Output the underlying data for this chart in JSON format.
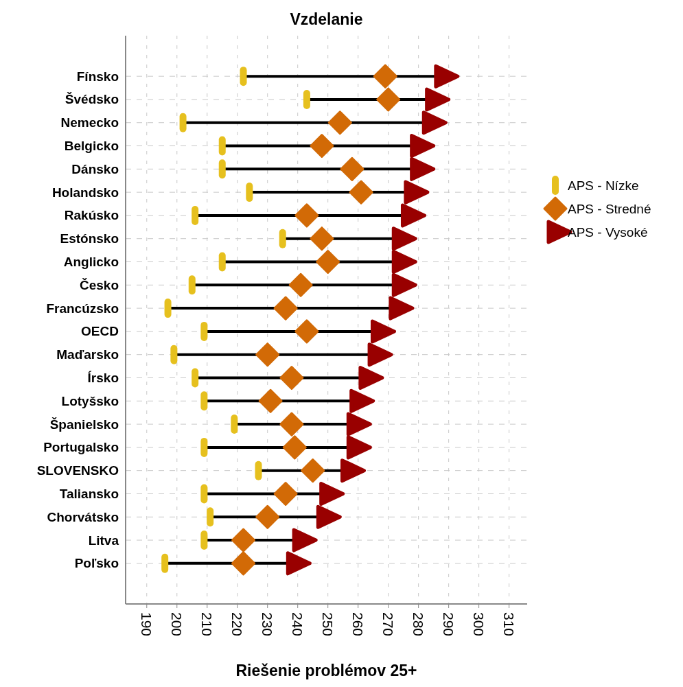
{
  "chart_data": {
    "type": "scatter",
    "title": "Vzdelanie",
    "xlabel": "Riešenie problémov 25+",
    "orientation": "horizontal",
    "categories": [
      "Fínsko",
      "Švédsko",
      "Nemecko",
      "Belgicko",
      "Dánsko",
      "Holandsko",
      "Rakúsko",
      "Estónsko",
      "Anglicko",
      "Česko",
      "Francúzsko",
      "OECD",
      "Maďarsko",
      "Írsko",
      "Lotyšsko",
      "Španielsko",
      "Portugalsko",
      "SLOVENSKO",
      "Taliansko",
      "Chorvátsko",
      "Litva",
      "Poľsko"
    ],
    "series": [
      {
        "name": "APS - Nízke",
        "color": "#e6c01e",
        "marker": "square",
        "values": [
          222,
          243,
          202,
          215,
          215,
          224,
          206,
          235,
          215,
          205,
          197,
          209,
          199,
          206,
          209,
          219,
          209,
          227,
          209,
          211,
          209,
          196
        ]
      },
      {
        "name": "APS - Stredné",
        "color": "#d26a06",
        "marker": "diamond",
        "values": [
          269,
          270,
          254,
          248,
          258,
          261,
          243,
          248,
          250,
          241,
          236,
          243,
          230,
          238,
          231,
          238,
          239,
          245,
          236,
          230,
          222,
          222
        ]
      },
      {
        "name": "APS - Vysoké",
        "color": "#990000",
        "marker": "triangle",
        "values": [
          288,
          285,
          284,
          280,
          280,
          278,
          277,
          274,
          274,
          274,
          273,
          267,
          266,
          263,
          260,
          259,
          259,
          257,
          250,
          249,
          241,
          239
        ]
      }
    ],
    "xlim": [
      183,
      316
    ],
    "xticks": [
      190,
      200,
      210,
      220,
      230,
      240,
      250,
      260,
      270,
      280,
      290,
      300,
      310
    ],
    "grid": true,
    "legend": "right"
  }
}
